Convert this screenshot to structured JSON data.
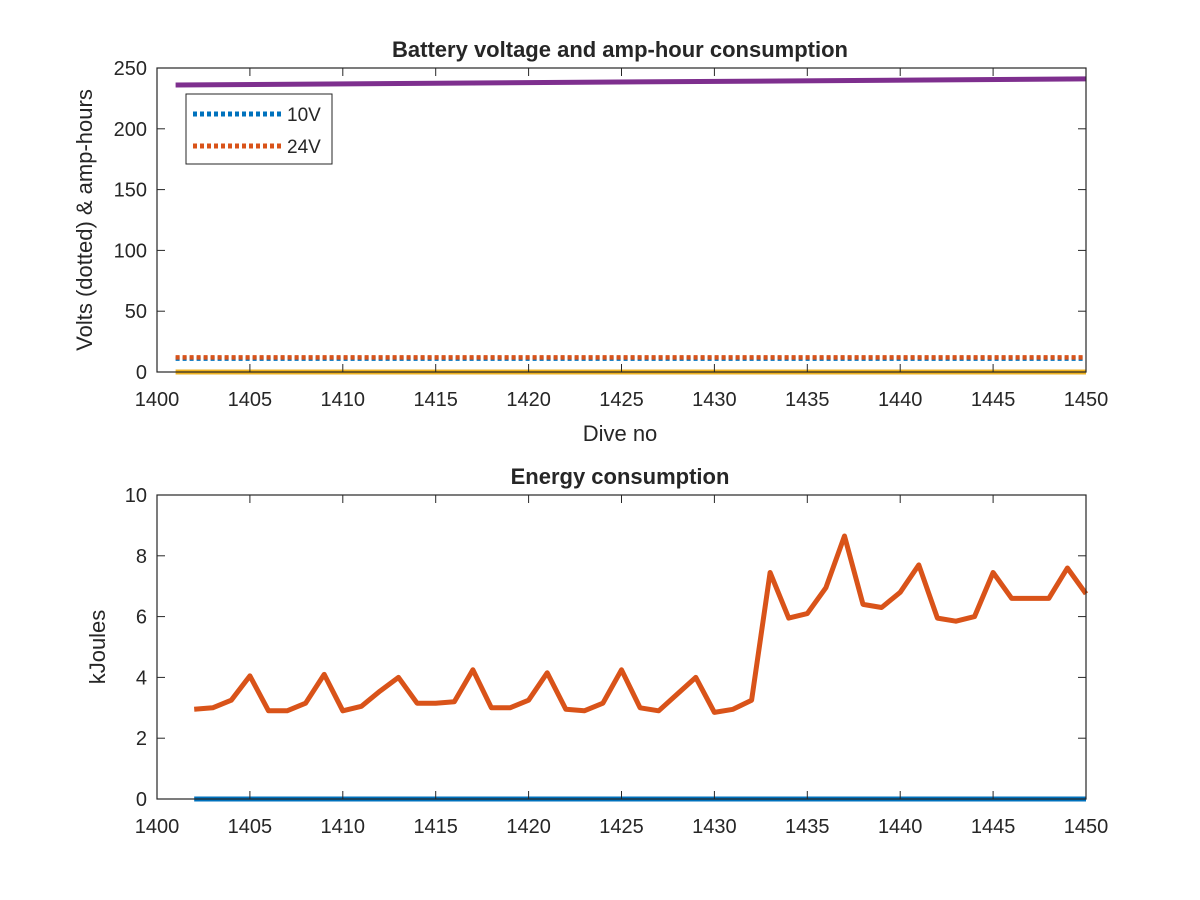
{
  "chart_data": [
    {
      "type": "line",
      "title": "Battery voltage and amp-hour consumption",
      "xlabel": "Dive no",
      "ylabel": "Volts (dotted) & amp-hours",
      "xlim": [
        1400,
        1450
      ],
      "ylim": [
        0,
        250
      ],
      "xticks": [
        1400,
        1405,
        1410,
        1415,
        1420,
        1425,
        1430,
        1435,
        1440,
        1445,
        1450
      ],
      "yticks": [
        0,
        50,
        100,
        150,
        200,
        250
      ],
      "grid": false,
      "legend_position": "top-left",
      "series": [
        {
          "name": "10V",
          "style": "dotted",
          "color": "#0072BD",
          "x": [
            1401,
            1450
          ],
          "y": [
            11,
            11
          ]
        },
        {
          "name": "24V",
          "style": "dotted",
          "color": "#D95319",
          "x": [
            1401,
            1450
          ],
          "y": [
            12,
            12
          ]
        },
        {
          "style": "solid",
          "color": "#EDB120",
          "x": [
            1401,
            1450
          ],
          "y": [
            0,
            0
          ]
        },
        {
          "style": "solid",
          "color": "#7E2F8E",
          "x": [
            1401,
            1450
          ],
          "y": [
            236,
            241
          ]
        }
      ]
    },
    {
      "type": "line",
      "title": "Energy consumption",
      "xlabel": "",
      "ylabel": "kJoules",
      "xlim": [
        1400,
        1450
      ],
      "ylim": [
        0,
        10
      ],
      "xticks": [
        1400,
        1405,
        1410,
        1415,
        1420,
        1425,
        1430,
        1435,
        1440,
        1445,
        1450
      ],
      "yticks": [
        0,
        2,
        4,
        6,
        8,
        10
      ],
      "grid": false,
      "series": [
        {
          "style": "solid",
          "color": "#0072BD",
          "x": [
            1402,
            1450
          ],
          "y": [
            0,
            0
          ]
        },
        {
          "style": "solid",
          "color": "#D95319",
          "x": [
            1402,
            1403,
            1404,
            1405,
            1406,
            1407,
            1408,
            1409,
            1410,
            1411,
            1412,
            1413,
            1414,
            1415,
            1416,
            1417,
            1418,
            1419,
            1420,
            1421,
            1422,
            1423,
            1424,
            1425,
            1426,
            1427,
            1428,
            1429,
            1430,
            1431,
            1432,
            1433,
            1434,
            1435,
            1436,
            1437,
            1438,
            1439,
            1440,
            1441,
            1442,
            1443,
            1444,
            1445,
            1446,
            1447,
            1448,
            1449,
            1450
          ],
          "y": [
            2.95,
            3.0,
            3.25,
            4.05,
            2.9,
            2.9,
            3.15,
            4.1,
            2.9,
            3.05,
            3.55,
            4.0,
            3.15,
            3.15,
            3.2,
            4.25,
            3.0,
            3.0,
            3.25,
            4.15,
            2.95,
            2.9,
            3.15,
            4.25,
            3.0,
            2.9,
            3.45,
            4.0,
            2.85,
            2.95,
            3.25,
            7.45,
            5.95,
            6.1,
            6.95,
            8.65,
            6.4,
            6.3,
            6.8,
            7.7,
            5.95,
            5.85,
            6.0,
            7.45,
            6.6,
            6.6,
            6.6,
            7.6,
            6.75
          ]
        }
      ]
    }
  ]
}
